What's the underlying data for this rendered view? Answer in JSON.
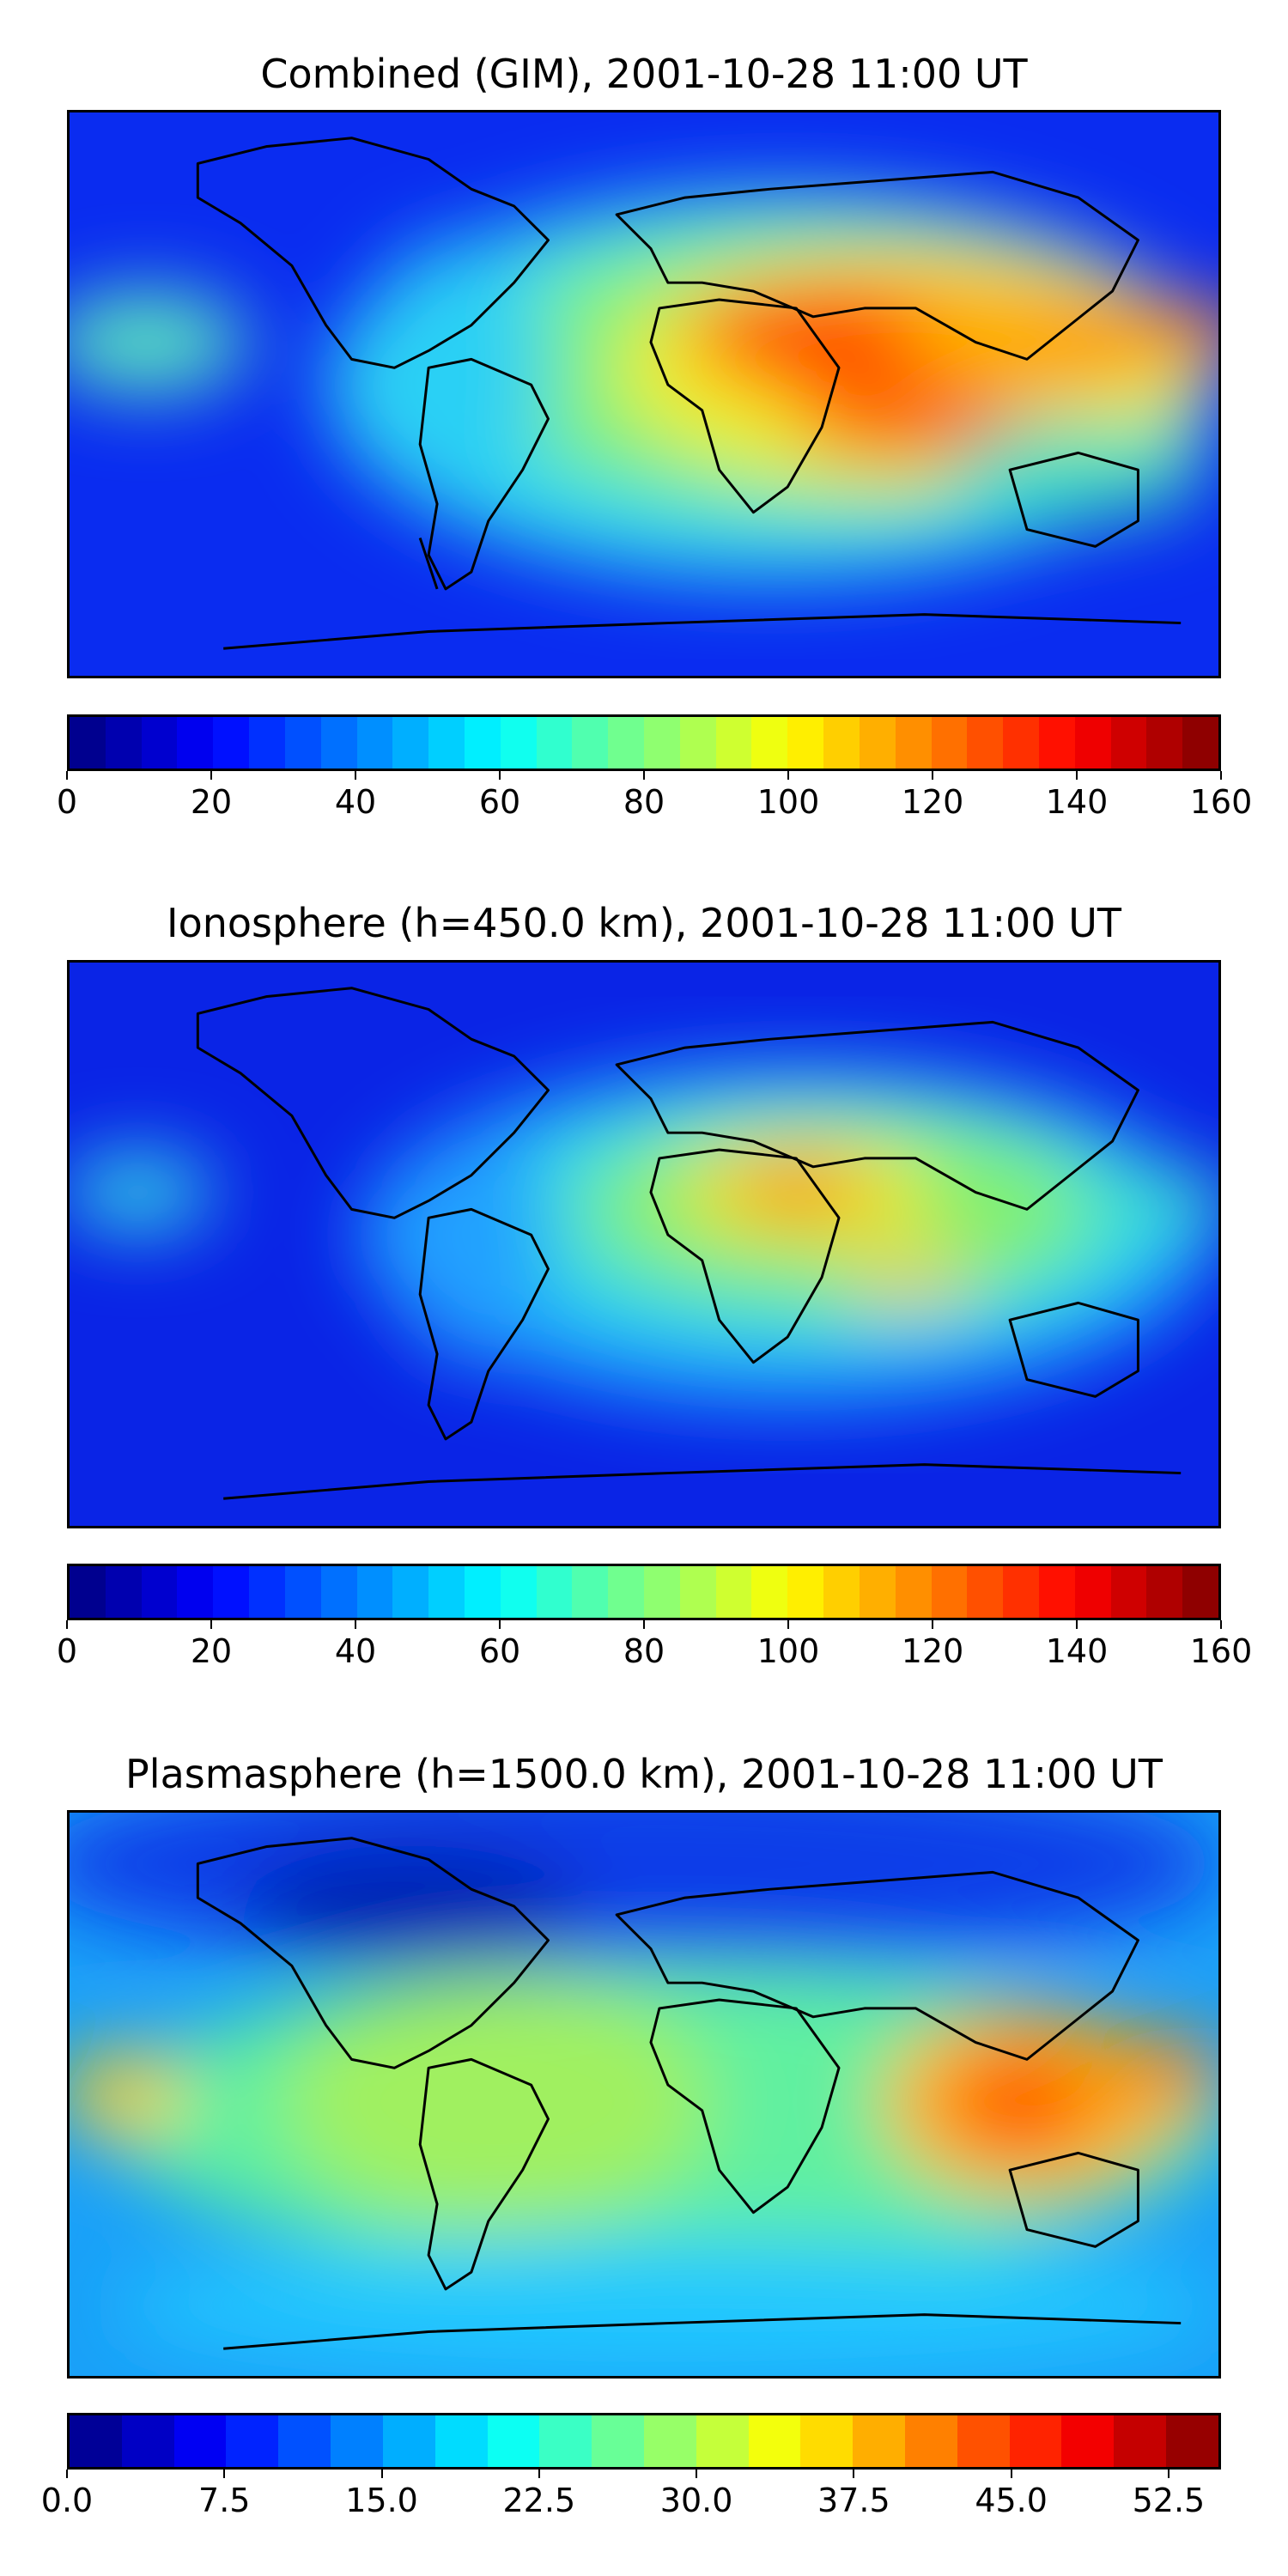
{
  "panels": [
    {
      "title": "Combined (GIM), 2001-10-28 11:00 UT",
      "quantity": "combined",
      "colorbar": {
        "min": 0,
        "max": 160,
        "levels": 32,
        "ticks": [
          "0",
          "20",
          "40",
          "60",
          "80",
          "100",
          "120",
          "140",
          "160"
        ]
      }
    },
    {
      "title": "Ionosphere  (h=450.0 km), 2001-10-28 11:00 UT",
      "quantity": "ionosphere",
      "colorbar": {
        "min": 0,
        "max": 160,
        "levels": 32,
        "ticks": [
          "0",
          "20",
          "40",
          "60",
          "80",
          "100",
          "120",
          "140",
          "160"
        ]
      }
    },
    {
      "title": "Plasmasphere (h=1500.0 km), 2001-10-28 11:00 UT",
      "quantity": "plasmasphere",
      "colorbar": {
        "min": 0,
        "max": 55,
        "levels": 22,
        "ticks": [
          "0.0",
          "7.5",
          "15.0",
          "22.5",
          "30.0",
          "37.5",
          "45.0",
          "52.5"
        ],
        "tick_values": [
          0,
          7.5,
          15,
          22.5,
          30,
          37.5,
          45,
          52.5
        ]
      }
    }
  ],
  "colormap": "jet",
  "colors": {
    "frame": "#000000",
    "coastline": "#000000"
  }
}
